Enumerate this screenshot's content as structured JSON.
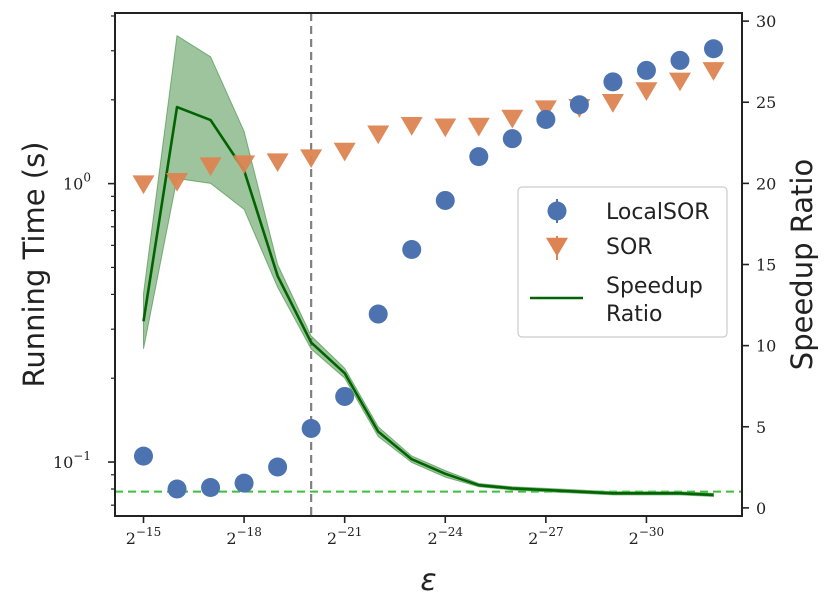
{
  "chart_data": {
    "type": "scatter+line",
    "title": "",
    "xlabel": "ε",
    "ylabel_left": "Running Time (s)",
    "ylabel_right": "Speedup Ratio",
    "x_exponents": [
      -15,
      -16,
      -17,
      -18,
      -19,
      -20,
      -21,
      -22,
      -23,
      -24,
      -25,
      -26,
      -27,
      -28,
      -29,
      -30,
      -31,
      -32
    ],
    "x_ticks": [
      {
        "exp": -15,
        "base": "2",
        "sup": "−15"
      },
      {
        "exp": -18,
        "base": "2",
        "sup": "−18"
      },
      {
        "exp": -21,
        "base": "2",
        "sup": "−21"
      },
      {
        "exp": -24,
        "base": "2",
        "sup": "−24"
      },
      {
        "exp": -27,
        "base": "2",
        "sup": "−27"
      },
      {
        "exp": -30,
        "base": "2",
        "sup": "−30"
      }
    ],
    "y_left_scale": "log",
    "y_left_range": [
      0.064,
      4.1
    ],
    "y_left_ticks": [
      {
        "value": 0.1,
        "base": "10",
        "sup": "−1"
      },
      {
        "value": 1.0,
        "base": "10",
        "sup": "0"
      }
    ],
    "y_right_range": [
      -0.5,
      30.5
    ],
    "y_right_ticks": [
      0,
      5,
      10,
      15,
      20,
      25,
      30
    ],
    "vertical_line_exp": -20,
    "horizontal_line_ratio": 1,
    "series": [
      {
        "name": "LocalSOR",
        "marker": "circle",
        "color": "#4c72b0",
        "axis": "left",
        "values": [
          0.105,
          0.08,
          0.081,
          0.084,
          0.096,
          0.132,
          0.172,
          0.34,
          0.58,
          0.87,
          1.25,
          1.45,
          1.7,
          1.92,
          2.32,
          2.55,
          2.77,
          3.05
        ]
      },
      {
        "name": "SOR",
        "marker": "triangle_down",
        "color": "#dd8452",
        "axis": "left",
        "values": [
          1.0,
          1.02,
          1.16,
          1.18,
          1.2,
          1.24,
          1.31,
          1.51,
          1.62,
          1.6,
          1.61,
          1.72,
          1.86,
          1.88,
          1.96,
          2.16,
          2.34,
          2.55
        ]
      },
      {
        "name": "Speedup\nRatio",
        "legend_lines": [
          "Speedup",
          "Ratio"
        ],
        "marker": "line",
        "color": "#006400",
        "axis": "right",
        "values": [
          11.5,
          24.7,
          23.9,
          20.8,
          14.3,
          10.2,
          8.3,
          4.7,
          3.0,
          2.1,
          1.4,
          1.2,
          1.1,
          1.0,
          0.9,
          0.9,
          0.9,
          0.8
        ],
        "band_lower": [
          9.8,
          20.3,
          20.0,
          18.4,
          13.6,
          9.8,
          8.0,
          4.4,
          2.8,
          1.9,
          1.3,
          1.1,
          1.0,
          0.9,
          0.8,
          0.8,
          0.8,
          0.7
        ],
        "band_upper": [
          13.2,
          29.1,
          27.8,
          23.2,
          15.0,
          10.6,
          8.6,
          5.0,
          3.2,
          2.3,
          1.5,
          1.3,
          1.2,
          1.1,
          1.0,
          1.0,
          1.0,
          0.9
        ]
      }
    ],
    "legend": {
      "position": "center-right",
      "entries": [
        "LocalSOR",
        "SOR",
        "Speedup",
        "Ratio"
      ]
    }
  }
}
